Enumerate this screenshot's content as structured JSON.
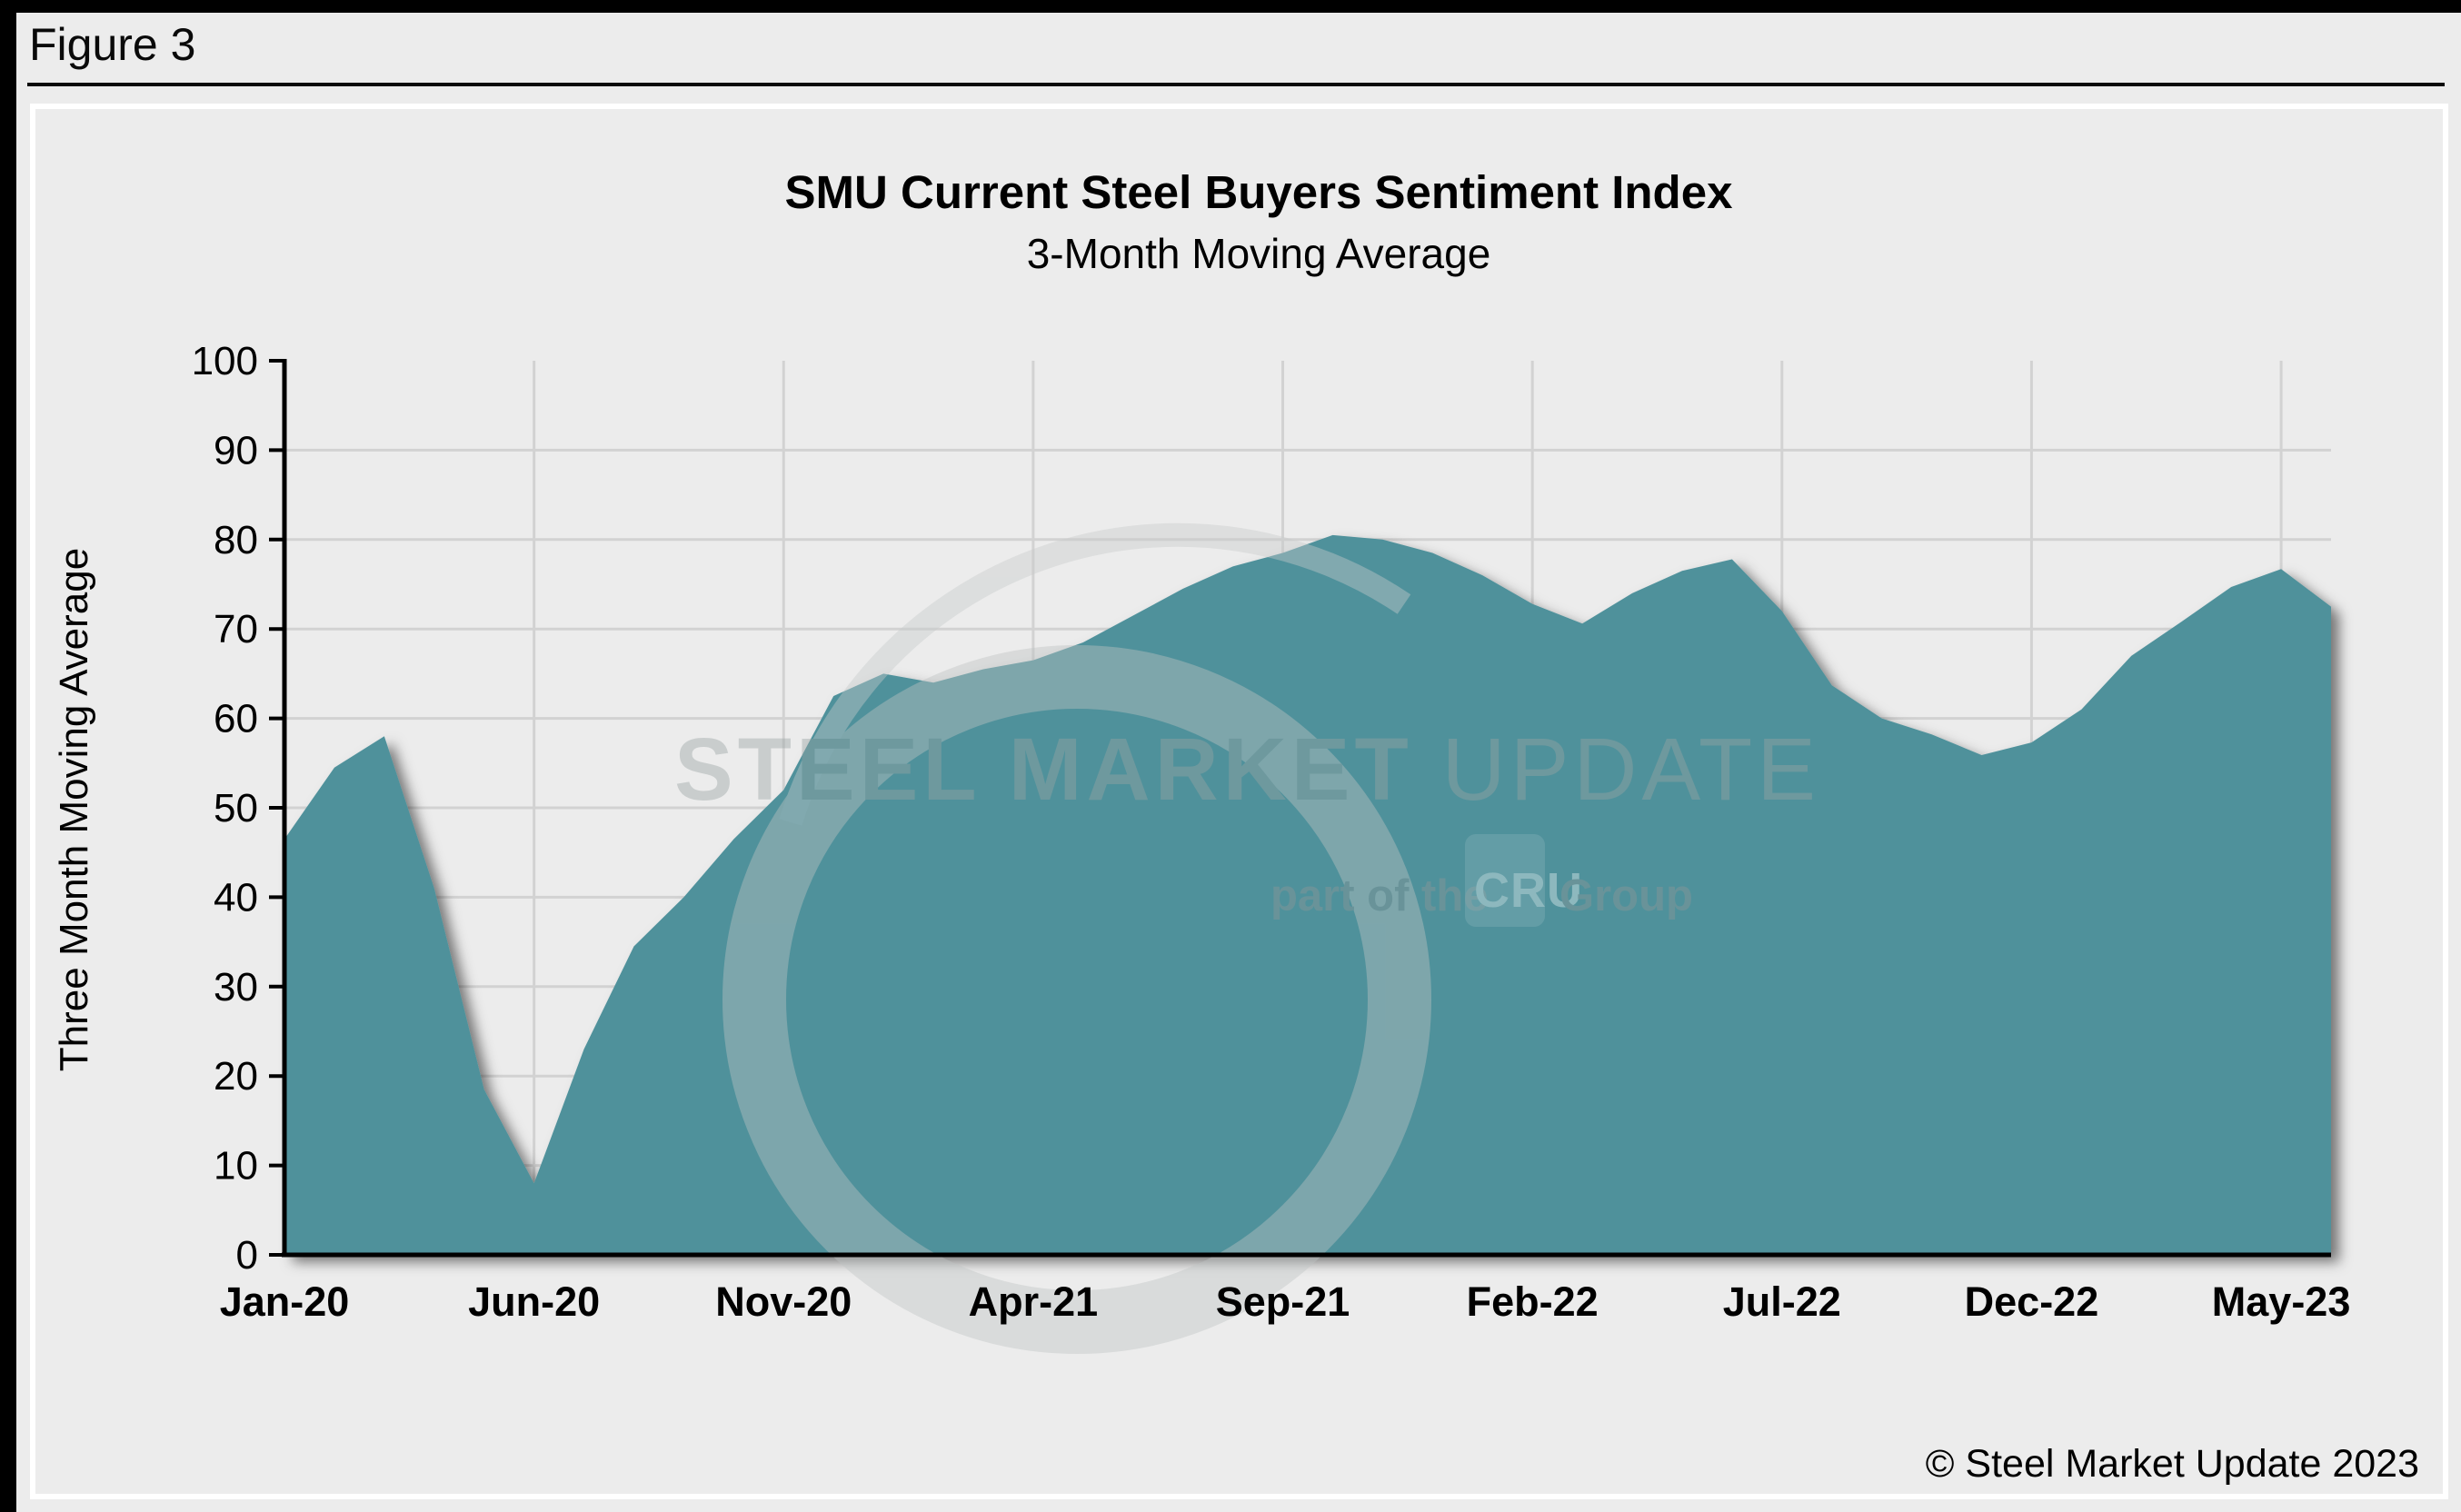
{
  "figure_label": "Figure 3",
  "header": {
    "title": "SMU Current Steel Buyers Sentiment Index",
    "subtitle": "3-Month Moving Average"
  },
  "y_axis_title": "Three Month Moving Average",
  "copyright": "© Steel Market Update 2023",
  "watermark": {
    "main_bold": "STEEL MARKET",
    "main_light": " UPDATE",
    "sub_prefix": "part of the",
    "logo": "CRU",
    "sub_suffix": "Group"
  },
  "colors": {
    "area": "#4f919b",
    "background": "#ececec",
    "grid": "#d2d2d2",
    "axis": "#000000",
    "watermark": "#bfc3c3",
    "shadow_opacity": "0.5"
  },
  "chart_data": {
    "type": "area",
    "title": "SMU Current Steel Buyers Sentiment Index",
    "subtitle": "3-Month Moving Average",
    "xlabel": "",
    "ylabel": "Three Month Moving Average",
    "ylim": [
      0,
      100
    ],
    "y_ticks": [
      0,
      10,
      20,
      30,
      40,
      50,
      60,
      70,
      80,
      90,
      100
    ],
    "grid": true,
    "legend": false,
    "x": [
      "Jan-20",
      "Feb-20",
      "Mar-20",
      "Apr-20",
      "May-20",
      "Jun-20",
      "Jul-20",
      "Aug-20",
      "Sep-20",
      "Oct-20",
      "Nov-20",
      "Dec-20",
      "Jan-21",
      "Feb-21",
      "Mar-21",
      "Apr-21",
      "May-21",
      "Jun-21",
      "Jul-21",
      "Aug-21",
      "Sep-21",
      "Oct-21",
      "Nov-21",
      "Dec-21",
      "Jan-22",
      "Feb-22",
      "Mar-22",
      "Apr-22",
      "May-22",
      "Jun-22",
      "Jul-22",
      "Aug-22",
      "Sep-22",
      "Oct-22",
      "Nov-22",
      "Dec-22",
      "Jan-23",
      "Feb-23",
      "Mar-23",
      "Apr-23",
      "May-23",
      "Jun-23"
    ],
    "values": [
      46.5,
      54.5,
      58.0,
      41.0,
      18.5,
      8.0,
      23.0,
      34.5,
      40.0,
      46.5,
      52.0,
      62.5,
      65.0,
      64.0,
      65.5,
      66.5,
      68.5,
      71.5,
      74.5,
      77.0,
      78.5,
      80.5,
      80.0,
      78.5,
      76.0,
      72.8,
      70.6,
      74.0,
      76.5,
      77.8,
      72.0,
      63.7,
      60.0,
      58.2,
      55.9,
      57.3,
      61.0,
      67.0,
      70.8,
      74.7,
      76.7,
      72.5
    ],
    "x_tick_labels": [
      "Jan-20",
      "Jun-20",
      "Nov-20",
      "Apr-21",
      "Sep-21",
      "Feb-22",
      "Jul-22",
      "Dec-22",
      "May-23"
    ],
    "x_tick_positions": [
      0,
      5,
      10,
      15,
      20,
      25,
      30,
      35,
      40
    ]
  }
}
